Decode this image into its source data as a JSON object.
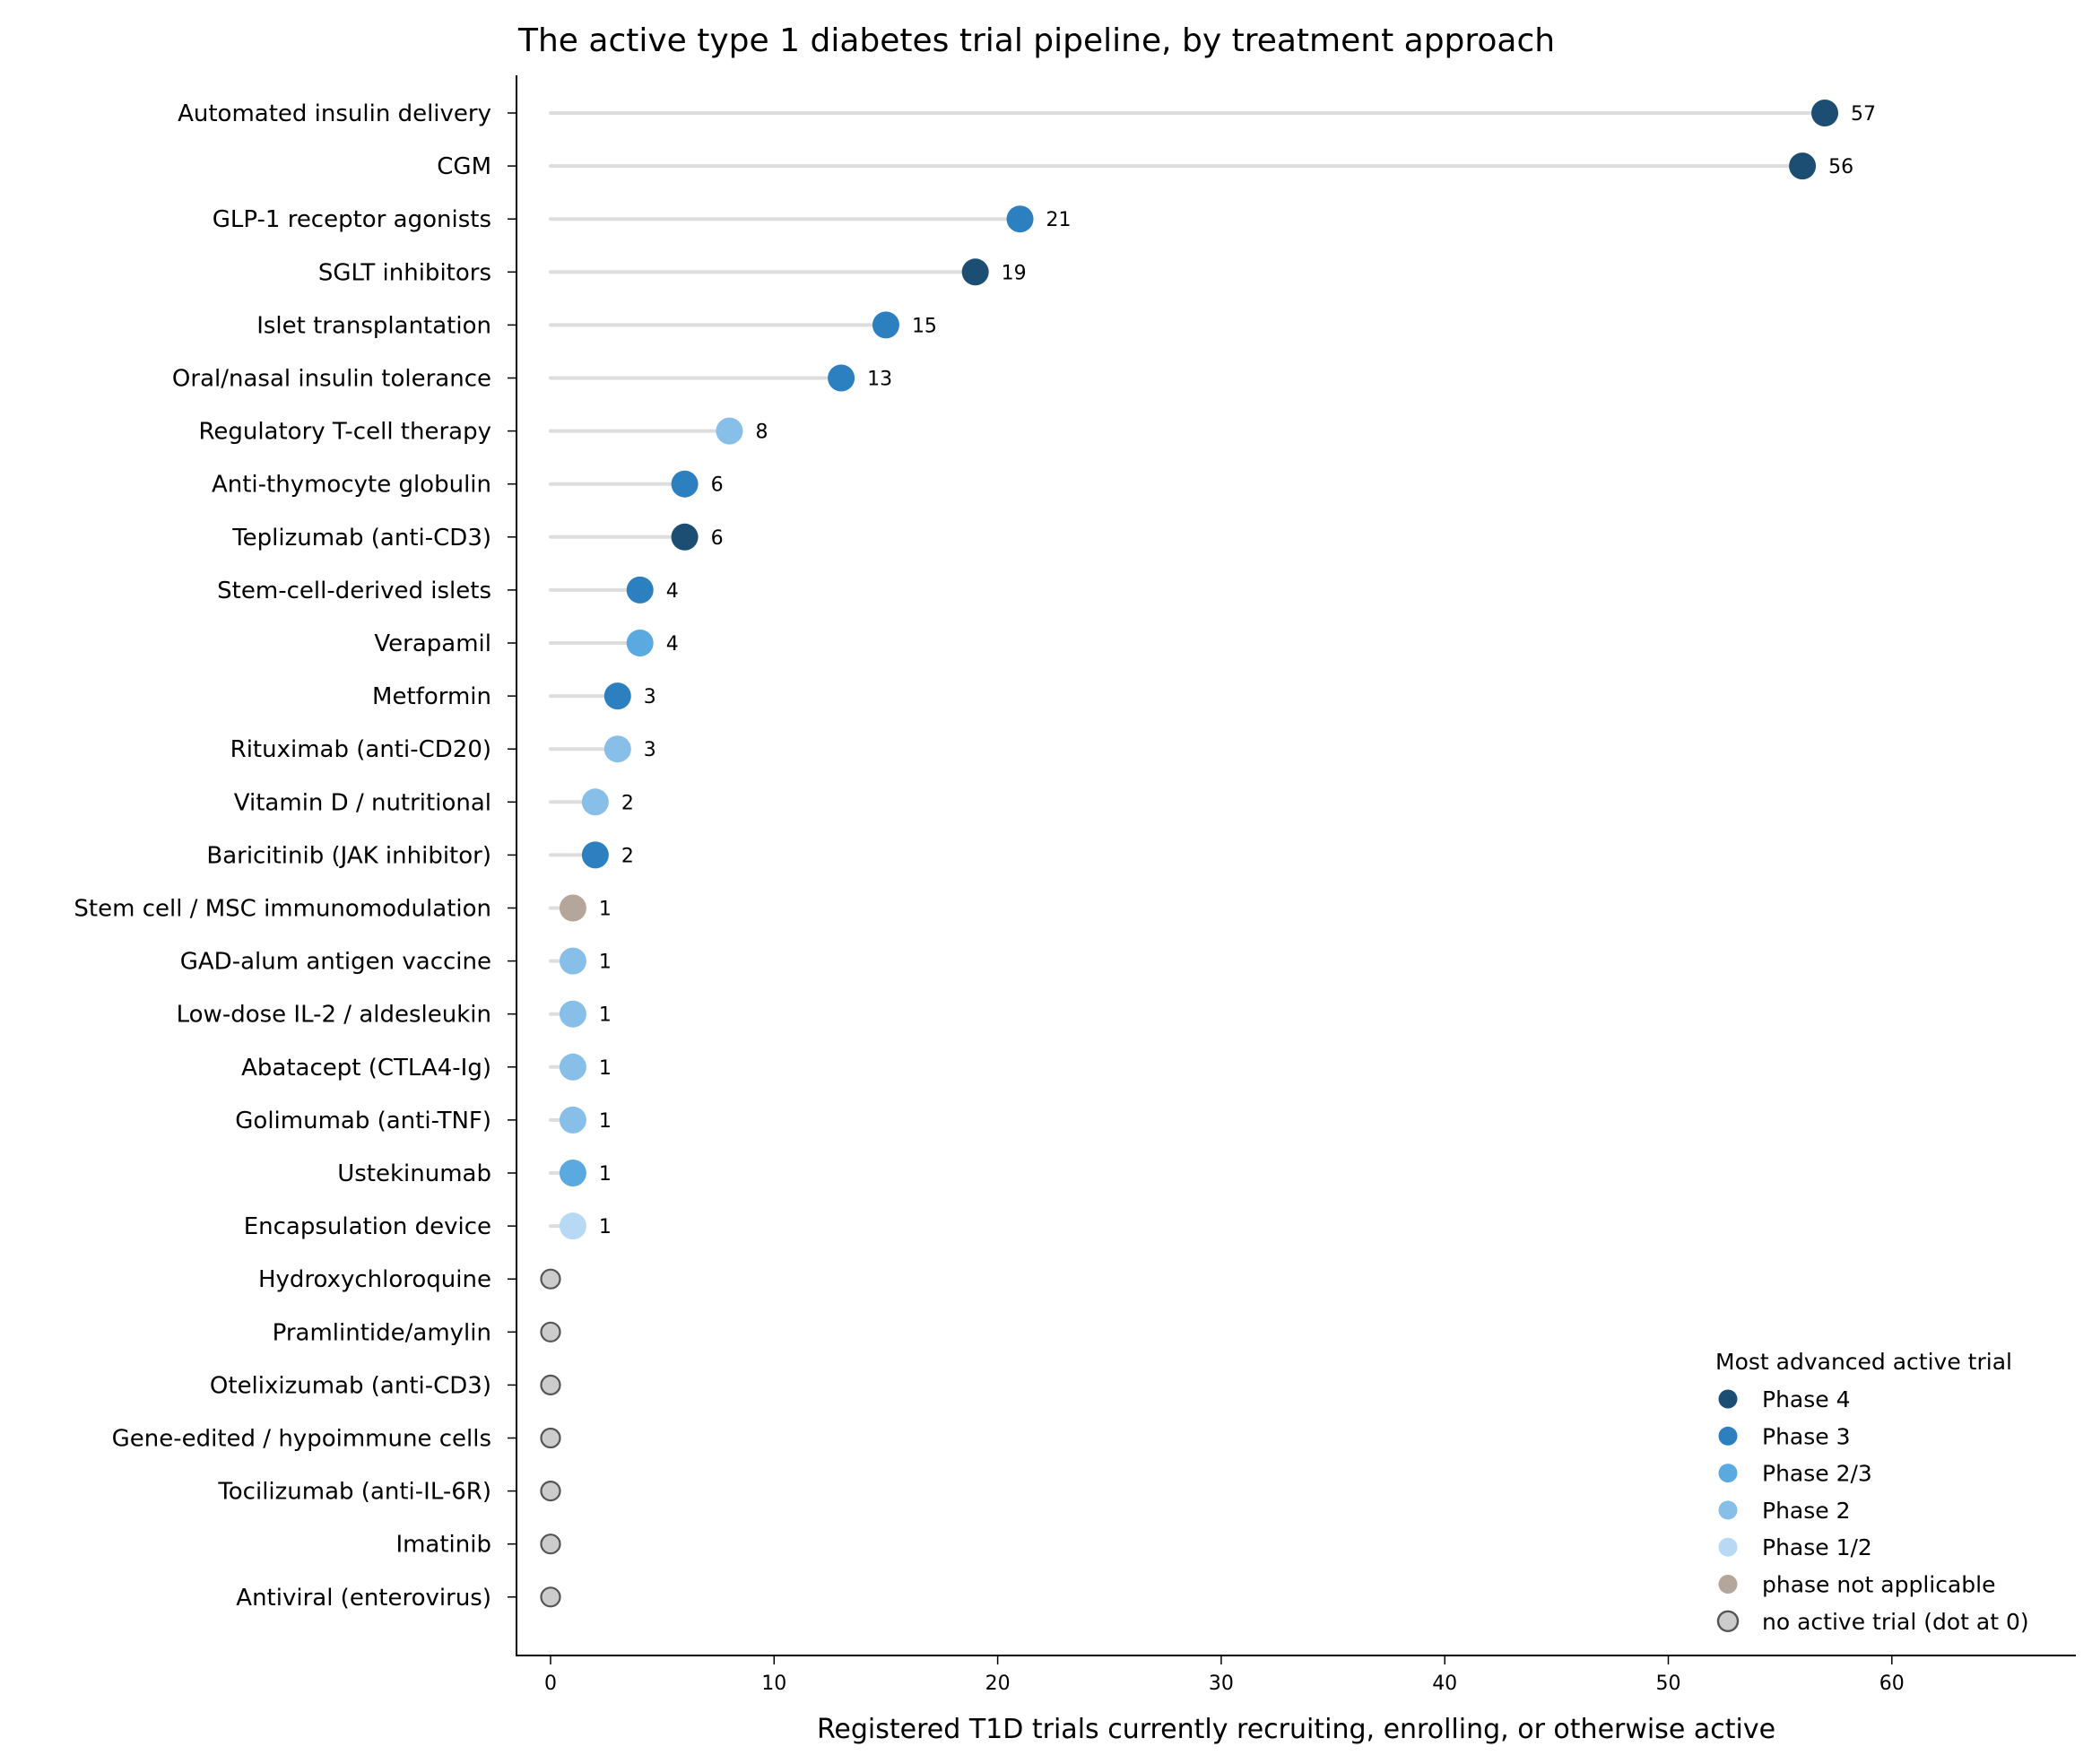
{
  "chart_data": {
    "type": "lollipop",
    "title": "The active type 1 diabetes trial pipeline, by treatment approach",
    "xlabel": "Registered T1D trials currently recruiting, enrolling, or otherwise active",
    "ylabel": "",
    "xlim": [
      -1.5,
      66
    ],
    "xticks": [
      0,
      10,
      20,
      30,
      40,
      50,
      60
    ],
    "grid": false,
    "legend_position": "bottom-right",
    "legend": {
      "title": "Most advanced active trial",
      "entries": [
        {
          "key": "phase4",
          "label": "Phase 4"
        },
        {
          "key": "phase3",
          "label": "Phase 3"
        },
        {
          "key": "phase23",
          "label": "Phase 2/3"
        },
        {
          "key": "phase2",
          "label": "Phase 2"
        },
        {
          "key": "phase12",
          "label": "Phase 1/2"
        },
        {
          "key": "na",
          "label": "phase not applicable"
        },
        {
          "key": "none",
          "label": "no active trial (dot at 0)"
        }
      ]
    },
    "colors": {
      "phase4": "#1c4e73",
      "phase3": "#2c80c0",
      "phase23": "#5aa9e0",
      "phase2": "#87bfe8",
      "phase12": "#b8d9f3",
      "na": "#b4a69a",
      "none": "#cccccc",
      "none_edge": "#555555",
      "stem": "#dddddd"
    },
    "items": [
      {
        "label": "Automated insulin delivery",
        "value": 57,
        "phase": "phase4"
      },
      {
        "label": "CGM",
        "value": 56,
        "phase": "phase4"
      },
      {
        "label": "GLP-1 receptor agonists",
        "value": 21,
        "phase": "phase3"
      },
      {
        "label": "SGLT inhibitors",
        "value": 19,
        "phase": "phase4"
      },
      {
        "label": "Islet transplantation",
        "value": 15,
        "phase": "phase3"
      },
      {
        "label": "Oral/nasal insulin tolerance",
        "value": 13,
        "phase": "phase3"
      },
      {
        "label": "Regulatory T-cell therapy",
        "value": 8,
        "phase": "phase2"
      },
      {
        "label": "Anti-thymocyte globulin",
        "value": 6,
        "phase": "phase3"
      },
      {
        "label": "Teplizumab (anti-CD3)",
        "value": 6,
        "phase": "phase4"
      },
      {
        "label": "Stem-cell-derived islets",
        "value": 4,
        "phase": "phase3"
      },
      {
        "label": "Verapamil",
        "value": 4,
        "phase": "phase23"
      },
      {
        "label": "Metformin",
        "value": 3,
        "phase": "phase3"
      },
      {
        "label": "Rituximab (anti-CD20)",
        "value": 3,
        "phase": "phase2"
      },
      {
        "label": "Vitamin D / nutritional",
        "value": 2,
        "phase": "phase2"
      },
      {
        "label": "Baricitinib (JAK inhibitor)",
        "value": 2,
        "phase": "phase3"
      },
      {
        "label": "Stem cell / MSC immunomodulation",
        "value": 1,
        "phase": "na"
      },
      {
        "label": "GAD-alum antigen vaccine",
        "value": 1,
        "phase": "phase2"
      },
      {
        "label": "Low-dose IL-2 / aldesleukin",
        "value": 1,
        "phase": "phase2"
      },
      {
        "label": "Abatacept (CTLA4-Ig)",
        "value": 1,
        "phase": "phase2"
      },
      {
        "label": "Golimumab (anti-TNF)",
        "value": 1,
        "phase": "phase2"
      },
      {
        "label": "Ustekinumab",
        "value": 1,
        "phase": "phase23"
      },
      {
        "label": "Encapsulation device",
        "value": 1,
        "phase": "phase12"
      },
      {
        "label": "Hydroxychloroquine",
        "value": 0,
        "phase": "none"
      },
      {
        "label": "Pramlintide/amylin",
        "value": 0,
        "phase": "none"
      },
      {
        "label": "Otelixizumab (anti-CD3)",
        "value": 0,
        "phase": "none"
      },
      {
        "label": "Gene-edited / hypoimmune cells",
        "value": 0,
        "phase": "none"
      },
      {
        "label": "Tocilizumab (anti-IL-6R)",
        "value": 0,
        "phase": "none"
      },
      {
        "label": "Imatinib",
        "value": 0,
        "phase": "none"
      },
      {
        "label": "Antiviral (enterovirus)",
        "value": 0,
        "phase": "none"
      }
    ]
  }
}
